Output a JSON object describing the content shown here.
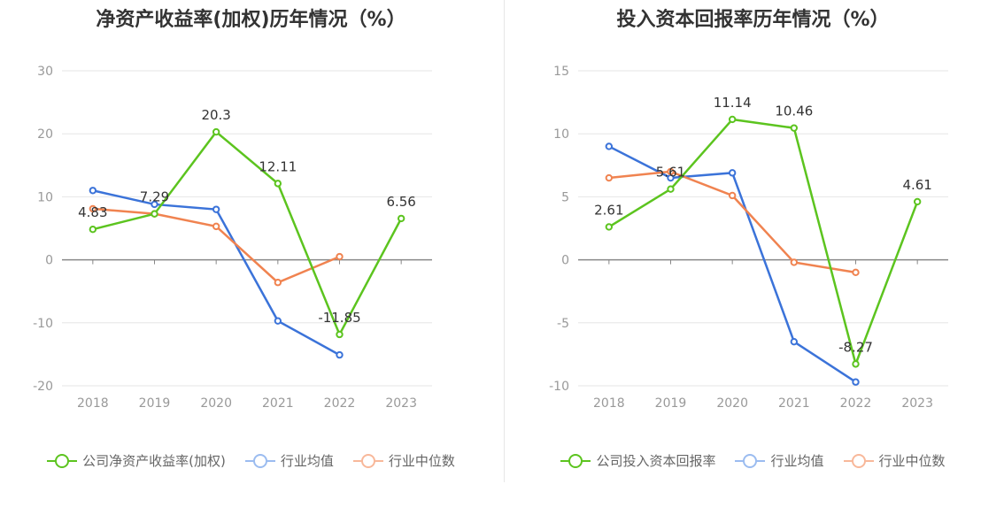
{
  "chart_data": [
    {
      "type": "line",
      "title": "净资产收益率(加权)历年情况（%）",
      "categories": [
        "2018",
        "2019",
        "2020",
        "2021",
        "2022",
        "2023"
      ],
      "ylim": [
        -20,
        30
      ],
      "yticks": [
        -20,
        -10,
        0,
        10,
        20,
        30
      ],
      "grid": true,
      "legend_position": "bottom",
      "series": [
        {
          "name": "公司净资产收益率(加权)",
          "color": "#5cc41f",
          "values": [
            4.83,
            7.29,
            20.3,
            12.11,
            -11.85,
            6.56
          ],
          "labels": [
            "4.83",
            "7.29",
            "20.3",
            "12.11",
            "-11.85",
            "6.56"
          ]
        },
        {
          "name": "行业均值",
          "color": "#3b73d9",
          "values": [
            11.0,
            8.8,
            8.0,
            -9.7,
            -15.1,
            null
          ]
        },
        {
          "name": "行业中位数",
          "color": "#f08350",
          "values": [
            8.1,
            7.3,
            5.3,
            -3.6,
            0.5,
            null
          ]
        }
      ]
    },
    {
      "type": "line",
      "title": "投入资本回报率历年情况（%）",
      "categories": [
        "2018",
        "2019",
        "2020",
        "2021",
        "2022",
        "2023"
      ],
      "ylim": [
        -10,
        15
      ],
      "yticks": [
        -10,
        -5,
        0,
        5,
        10,
        15
      ],
      "grid": true,
      "legend_position": "bottom",
      "series": [
        {
          "name": "公司投入资本回报率",
          "color": "#5cc41f",
          "values": [
            2.61,
            5.61,
            11.14,
            10.46,
            -8.27,
            4.61
          ],
          "labels": [
            "2.61",
            "5.61",
            "11.14",
            "10.46",
            "-8.27",
            "4.61"
          ]
        },
        {
          "name": "行业均值",
          "color": "#3b73d9",
          "values": [
            9.0,
            6.5,
            6.9,
            -6.5,
            -9.7,
            null
          ]
        },
        {
          "name": "行业中位数",
          "color": "#f08350",
          "values": [
            6.5,
            7.0,
            5.1,
            -0.2,
            -1.0,
            null
          ]
        }
      ]
    }
  ]
}
